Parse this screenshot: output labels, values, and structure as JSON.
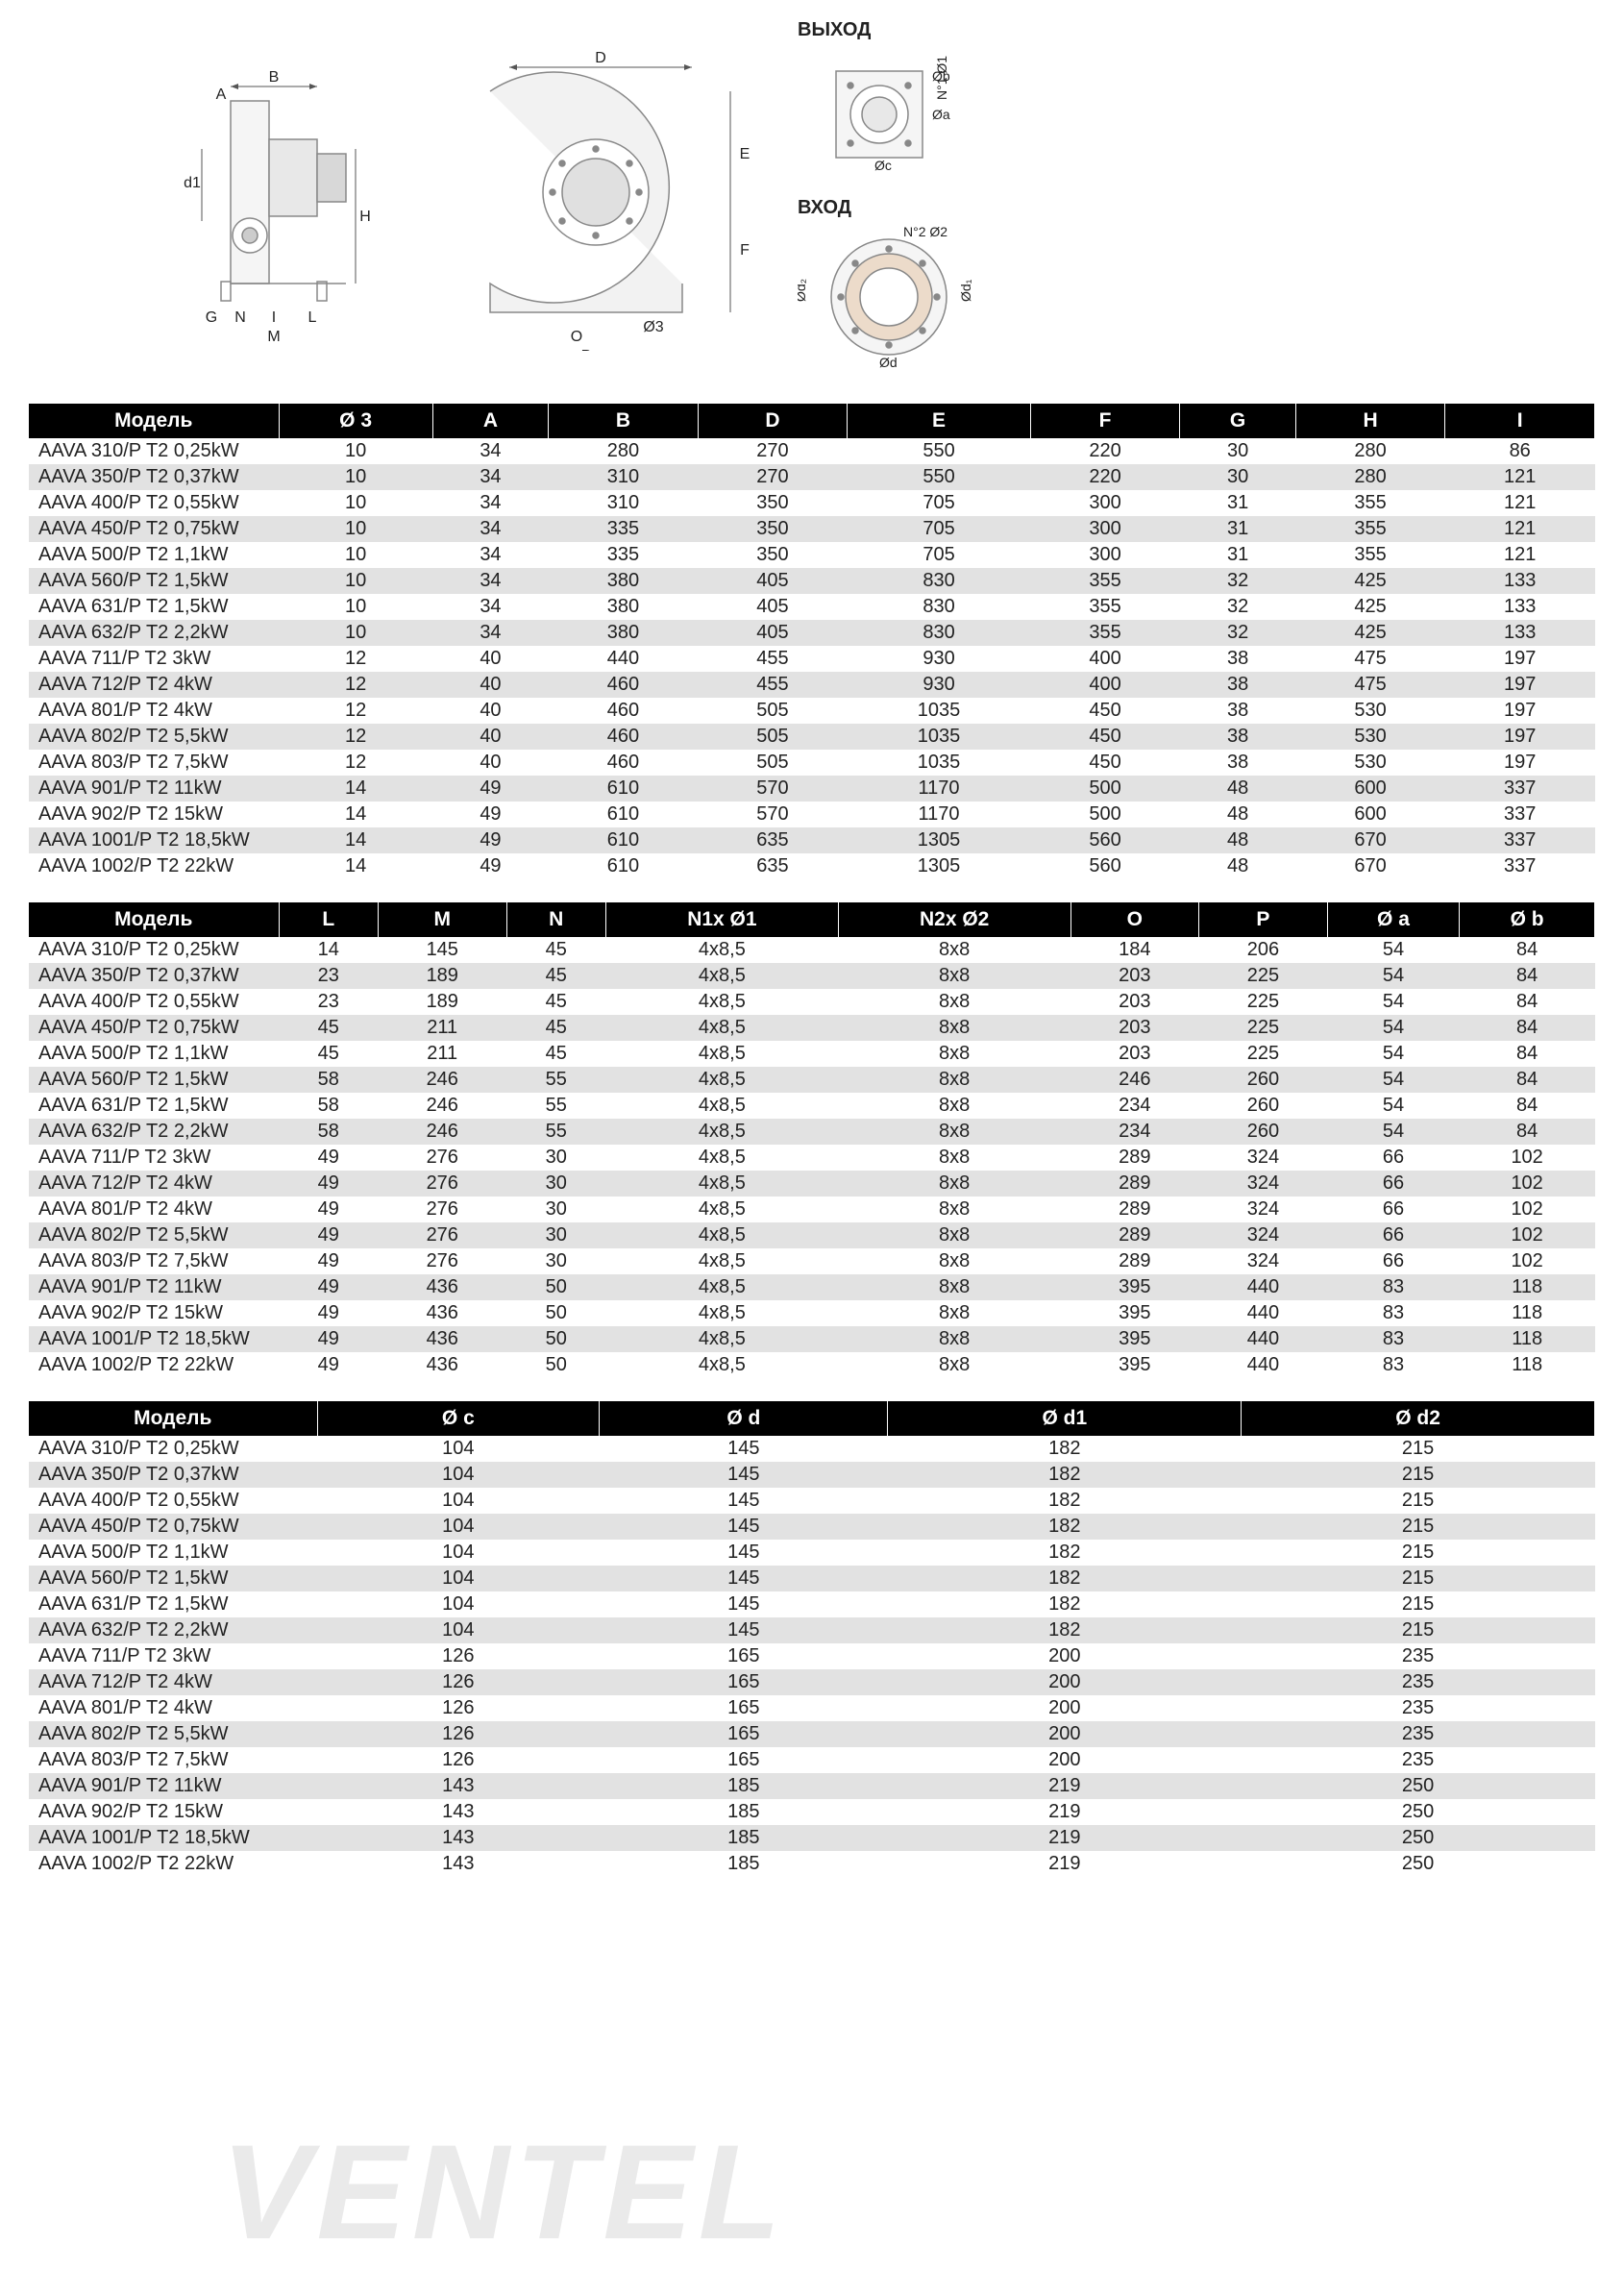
{
  "diagram_labels": {
    "outlet": "ВЫХОД",
    "inlet": "ВХОД"
  },
  "watermark": "VENTEL",
  "table1": {
    "columns": [
      "Модель",
      "Ø 3",
      "A",
      "B",
      "D",
      "E",
      "F",
      "G",
      "H",
      "I"
    ],
    "rows": [
      [
        "AAVA 310/P T2 0,25kW",
        "10",
        "34",
        "280",
        "270",
        "550",
        "220",
        "30",
        "280",
        "86"
      ],
      [
        "AAVA 350/P T2 0,37kW",
        "10",
        "34",
        "310",
        "270",
        "550",
        "220",
        "30",
        "280",
        "121"
      ],
      [
        "AAVA 400/P T2 0,55kW",
        "10",
        "34",
        "310",
        "350",
        "705",
        "300",
        "31",
        "355",
        "121"
      ],
      [
        "AAVA 450/P T2 0,75kW",
        "10",
        "34",
        "335",
        "350",
        "705",
        "300",
        "31",
        "355",
        "121"
      ],
      [
        "AAVA 500/P T2 1,1kW",
        "10",
        "34",
        "335",
        "350",
        "705",
        "300",
        "31",
        "355",
        "121"
      ],
      [
        "AAVA 560/P T2 1,5kW",
        "10",
        "34",
        "380",
        "405",
        "830",
        "355",
        "32",
        "425",
        "133"
      ],
      [
        "AAVA 631/P T2 1,5kW",
        "10",
        "34",
        "380",
        "405",
        "830",
        "355",
        "32",
        "425",
        "133"
      ],
      [
        "AAVA 632/P T2 2,2kW",
        "10",
        "34",
        "380",
        "405",
        "830",
        "355",
        "32",
        "425",
        "133"
      ],
      [
        "AAVA 711/P T2 3kW",
        "12",
        "40",
        "440",
        "455",
        "930",
        "400",
        "38",
        "475",
        "197"
      ],
      [
        "AAVA 712/P T2 4kW",
        "12",
        "40",
        "460",
        "455",
        "930",
        "400",
        "38",
        "475",
        "197"
      ],
      [
        "AAVA 801/P T2 4kW",
        "12",
        "40",
        "460",
        "505",
        "1035",
        "450",
        "38",
        "530",
        "197"
      ],
      [
        "AAVA 802/P T2 5,5kW",
        "12",
        "40",
        "460",
        "505",
        "1035",
        "450",
        "38",
        "530",
        "197"
      ],
      [
        "AAVA 803/P T2 7,5kW",
        "12",
        "40",
        "460",
        "505",
        "1035",
        "450",
        "38",
        "530",
        "197"
      ],
      [
        "AAVA 901/P T2 11kW",
        "14",
        "49",
        "610",
        "570",
        "1170",
        "500",
        "48",
        "600",
        "337"
      ],
      [
        "AAVA 902/P T2 15kW",
        "14",
        "49",
        "610",
        "570",
        "1170",
        "500",
        "48",
        "600",
        "337"
      ],
      [
        "AAVA 1001/P T2 18,5kW",
        "14",
        "49",
        "610",
        "635",
        "1305",
        "560",
        "48",
        "670",
        "337"
      ],
      [
        "AAVA 1002/P T2 22kW",
        "14",
        "49",
        "610",
        "635",
        "1305",
        "560",
        "48",
        "670",
        "337"
      ]
    ]
  },
  "table2": {
    "columns": [
      "Модель",
      "L",
      "M",
      "N",
      "N1x Ø1",
      "N2x Ø2",
      "O",
      "P",
      "Ø a",
      "Ø b"
    ],
    "rows": [
      [
        "AAVA 310/P T2 0,25kW",
        "14",
        "145",
        "45",
        "4x8,5",
        "8x8",
        "184",
        "206",
        "54",
        "84"
      ],
      [
        "AAVA 350/P T2 0,37kW",
        "23",
        "189",
        "45",
        "4x8,5",
        "8x8",
        "203",
        "225",
        "54",
        "84"
      ],
      [
        "AAVA 400/P T2 0,55kW",
        "23",
        "189",
        "45",
        "4x8,5",
        "8x8",
        "203",
        "225",
        "54",
        "84"
      ],
      [
        "AAVA 450/P T2 0,75kW",
        "45",
        "211",
        "45",
        "4x8,5",
        "8x8",
        "203",
        "225",
        "54",
        "84"
      ],
      [
        "AAVA 500/P T2 1,1kW",
        "45",
        "211",
        "45",
        "4x8,5",
        "8x8",
        "203",
        "225",
        "54",
        "84"
      ],
      [
        "AAVA 560/P T2 1,5kW",
        "58",
        "246",
        "55",
        "4x8,5",
        "8x8",
        "246",
        "260",
        "54",
        "84"
      ],
      [
        "AAVA 631/P T2 1,5kW",
        "58",
        "246",
        "55",
        "4x8,5",
        "8x8",
        "234",
        "260",
        "54",
        "84"
      ],
      [
        "AAVA 632/P T2 2,2kW",
        "58",
        "246",
        "55",
        "4x8,5",
        "8x8",
        "234",
        "260",
        "54",
        "84"
      ],
      [
        "AAVA 711/P T2 3kW",
        "49",
        "276",
        "30",
        "4x8,5",
        "8x8",
        "289",
        "324",
        "66",
        "102"
      ],
      [
        "AAVA 712/P T2 4kW",
        "49",
        "276",
        "30",
        "4x8,5",
        "8x8",
        "289",
        "324",
        "66",
        "102"
      ],
      [
        "AAVA 801/P T2 4kW",
        "49",
        "276",
        "30",
        "4x8,5",
        "8x8",
        "289",
        "324",
        "66",
        "102"
      ],
      [
        "AAVA 802/P T2 5,5kW",
        "49",
        "276",
        "30",
        "4x8,5",
        "8x8",
        "289",
        "324",
        "66",
        "102"
      ],
      [
        "AAVA 803/P T2 7,5kW",
        "49",
        "276",
        "30",
        "4x8,5",
        "8x8",
        "289",
        "324",
        "66",
        "102"
      ],
      [
        "AAVA 901/P T2 11kW",
        "49",
        "436",
        "50",
        "4x8,5",
        "8x8",
        "395",
        "440",
        "83",
        "118"
      ],
      [
        "AAVA 902/P T2 15kW",
        "49",
        "436",
        "50",
        "4x8,5",
        "8x8",
        "395",
        "440",
        "83",
        "118"
      ],
      [
        "AAVA 1001/P T2 18,5kW",
        "49",
        "436",
        "50",
        "4x8,5",
        "8x8",
        "395",
        "440",
        "83",
        "118"
      ],
      [
        "AAVA 1002/P T2 22kW",
        "49",
        "436",
        "50",
        "4x8,5",
        "8x8",
        "395",
        "440",
        "83",
        "118"
      ]
    ]
  },
  "table3": {
    "columns": [
      "Модель",
      "Ø c",
      "Ø d",
      "Ø d1",
      "Ø d2"
    ],
    "rows": [
      [
        "AAVA 310/P T2 0,25kW",
        "104",
        "145",
        "182",
        "215"
      ],
      [
        "AAVA 350/P T2 0,37kW",
        "104",
        "145",
        "182",
        "215"
      ],
      [
        "AAVA 400/P T2 0,55kW",
        "104",
        "145",
        "182",
        "215"
      ],
      [
        "AAVA 450/P T2 0,75kW",
        "104",
        "145",
        "182",
        "215"
      ],
      [
        "AAVA 500/P T2 1,1kW",
        "104",
        "145",
        "182",
        "215"
      ],
      [
        "AAVA 560/P T2 1,5kW",
        "104",
        "145",
        "182",
        "215"
      ],
      [
        "AAVA 631/P T2 1,5kW",
        "104",
        "145",
        "182",
        "215"
      ],
      [
        "AAVA 632/P T2 2,2kW",
        "104",
        "145",
        "182",
        "215"
      ],
      [
        "AAVA 711/P T2 3kW",
        "126",
        "165",
        "200",
        "235"
      ],
      [
        "AAVA 712/P T2 4kW",
        "126",
        "165",
        "200",
        "235"
      ],
      [
        "AAVA 801/P T2 4kW",
        "126",
        "165",
        "200",
        "235"
      ],
      [
        "AAVA 802/P T2 5,5kW",
        "126",
        "165",
        "200",
        "235"
      ],
      [
        "AAVA 803/P T2 7,5kW",
        "126",
        "165",
        "200",
        "235"
      ],
      [
        "AAVA 901/P T2 11kW",
        "143",
        "185",
        "219",
        "250"
      ],
      [
        "AAVA 902/P T2 15kW",
        "143",
        "185",
        "219",
        "250"
      ],
      [
        "AAVA 1001/P T2 18,5kW",
        "143",
        "185",
        "219",
        "250"
      ],
      [
        "AAVA 1002/P T2 22kW",
        "143",
        "185",
        "219",
        "250"
      ]
    ]
  },
  "table3_col_widths": [
    "300px",
    "auto",
    "auto",
    "auto",
    "auto"
  ]
}
